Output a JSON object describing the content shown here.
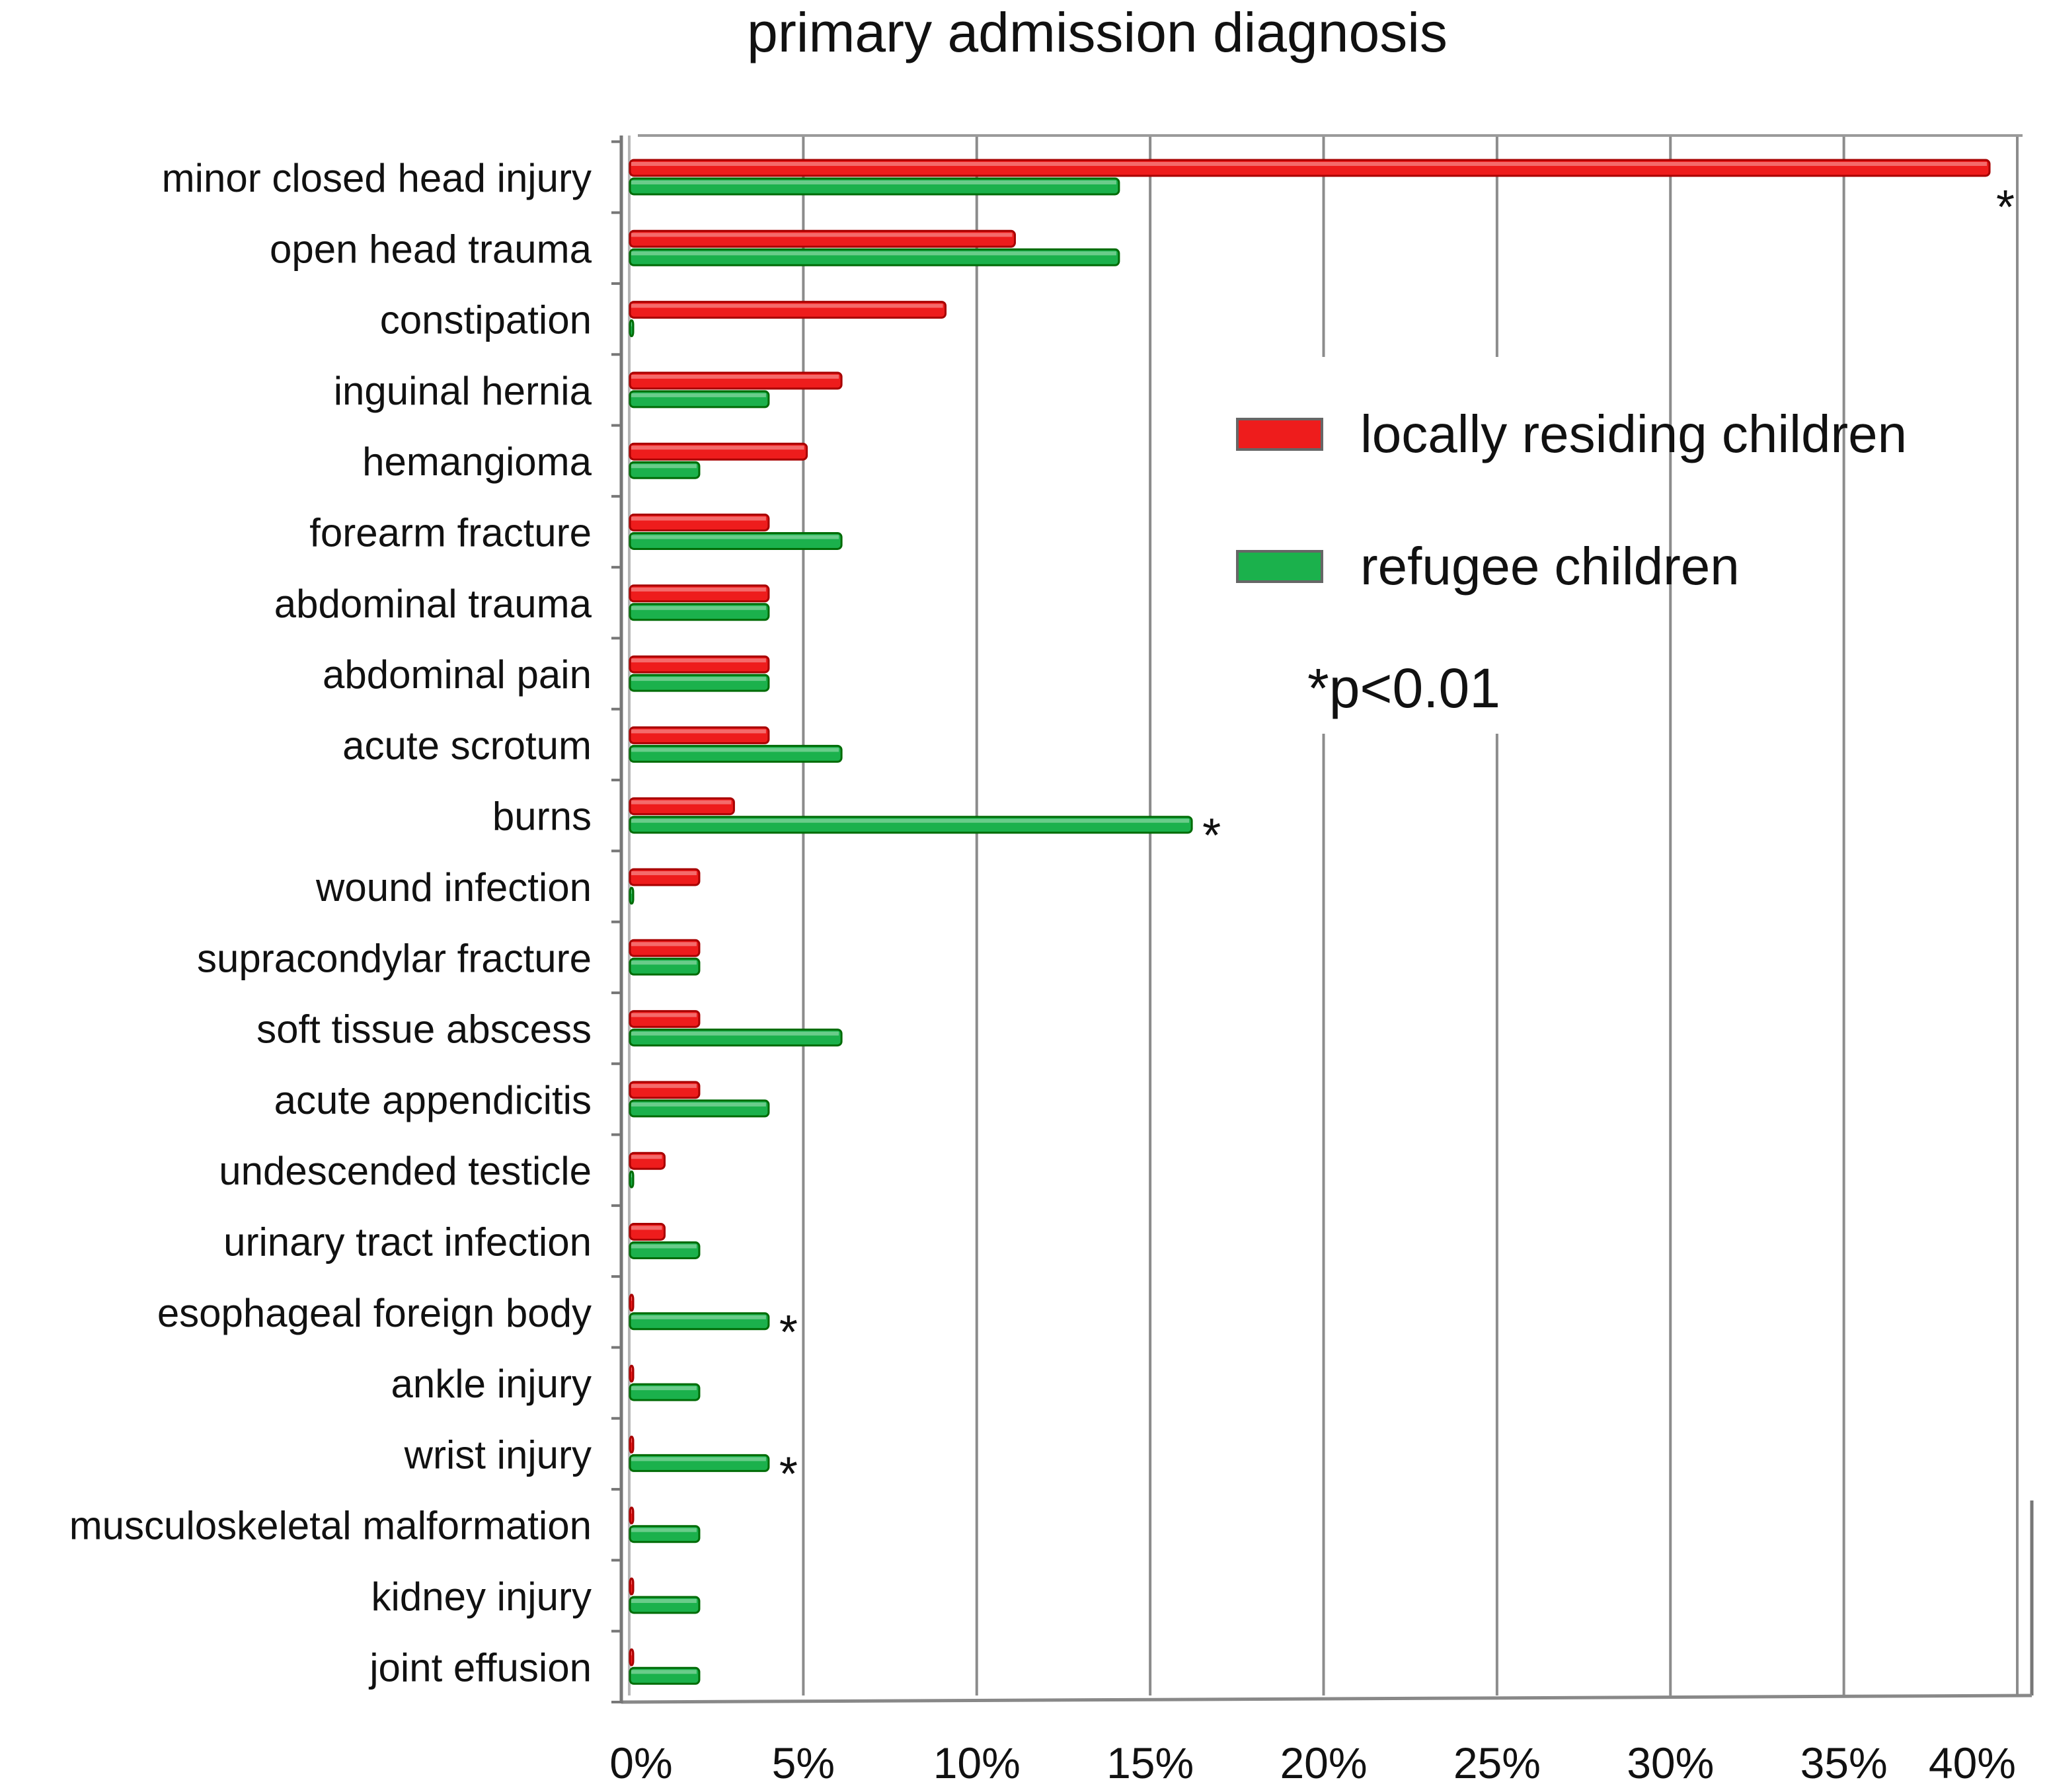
{
  "chart_data": {
    "type": "bar",
    "orientation": "horizontal",
    "title": "primary admission diagnosis",
    "xlabel": "",
    "ylabel": "",
    "xlim": [
      0,
      40
    ],
    "grid": true,
    "categories": [
      "minor closed head injury",
      "open head trauma",
      "constipation",
      "inguinal hernia",
      "hemangioma",
      "forearm fracture",
      "abdominal trauma",
      "abdominal pain",
      "acute scrotum",
      "burns",
      "wound infection",
      "supracondylar fracture",
      "soft tissue abscess",
      "acute appendicitis",
      "undescended testicle",
      "urinary tract infection",
      "esophageal foreign body",
      "ankle injury",
      "wrist injury",
      "musculoskeletal malformation",
      "kidney injury",
      "joint effusion"
    ],
    "series": [
      {
        "name": "locally residing children",
        "color": "#ee1c1c",
        "values": [
          39.2,
          11.1,
          9.1,
          6.1,
          5.1,
          4.0,
          4.0,
          4.0,
          4.0,
          3.0,
          2.0,
          2.0,
          2.0,
          2.0,
          1.0,
          1.0,
          0,
          0,
          0,
          0,
          0,
          0
        ]
      },
      {
        "name": "refugee children",
        "color": "#1bb14c",
        "values": [
          14.1,
          14.1,
          0,
          4.0,
          2.0,
          6.1,
          4.0,
          4.0,
          6.1,
          16.2,
          0,
          2.0,
          6.1,
          4.0,
          0,
          2.0,
          4.0,
          2.0,
          4.0,
          2.0,
          2.0,
          2.0
        ]
      }
    ],
    "ticks": [
      "0%",
      "5%",
      "10%",
      "15%",
      "20%",
      "25%",
      "30%",
      "35%",
      "40%"
    ],
    "significance_marks": [
      {
        "category": "minor closed head injury",
        "series": "locally residing children",
        "label": "*"
      },
      {
        "category": "burns",
        "series": "refugee children",
        "label": "*"
      },
      {
        "category": "esophageal foreign body",
        "series": "refugee children",
        "label": "*"
      },
      {
        "category": "wrist injury",
        "series": "refugee children",
        "label": "*"
      }
    ],
    "legend": {
      "position": "right-middle",
      "note": "*p<0.01"
    }
  }
}
